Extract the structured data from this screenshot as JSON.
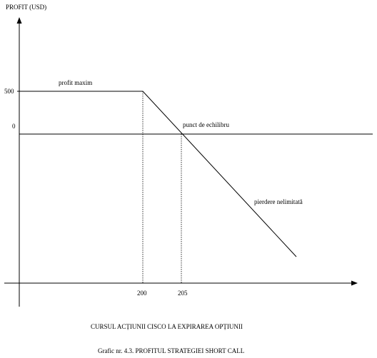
{
  "diagram": {
    "y_axis_title": "PROFIT (USD)",
    "y_tick_top": "500",
    "y_tick_zero": "0",
    "x_tick_break": "200",
    "x_tick_even": "205",
    "label_max_profit": "profit maxim",
    "label_breakeven": "punct de echilibru",
    "label_unlimited_loss": "pierdere nelimitată",
    "x_axis_title": "CURSUL ACȚIUNII CISCO LA EXPIRAREA OPȚIUNII",
    "caption": "Grafic nr. 4.3. PROFITUL STRATEGIEI SHORT CALL"
  }
}
